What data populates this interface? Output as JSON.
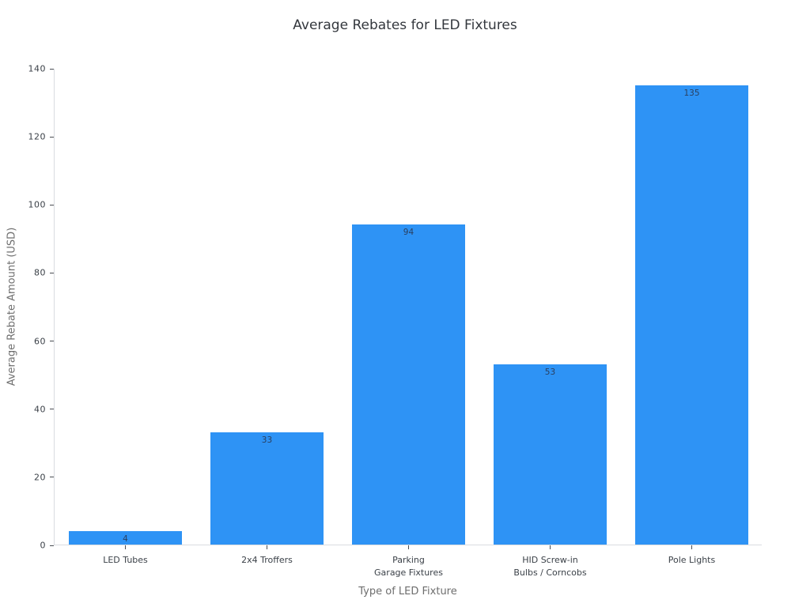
{
  "chart_data": {
    "type": "bar",
    "title": "Average Rebates for LED Fixtures",
    "xlabel": "Type of LED Fixture",
    "ylabel": "Average Rebate Amount (USD)",
    "categories": [
      "LED Tubes",
      "2x4 Troffers",
      "Parking\nGarage Fixtures",
      "HID Screw-in\nBulbs / Corncobs",
      "Pole Lights"
    ],
    "values": [
      4,
      33,
      94,
      53,
      135
    ],
    "value_labels": [
      "4",
      "33",
      "94",
      "53",
      "135"
    ],
    "ylim": [
      0,
      140
    ],
    "yticks": [
      0,
      20,
      40,
      60,
      80,
      100,
      120,
      140
    ],
    "grid": false,
    "legend": "none",
    "bar_label_position": "inside-top",
    "bar_width_fraction": 0.8
  },
  "colors": {
    "bar": "#2e93f5",
    "bar_value_label": "#2a3f5f",
    "tick_label": "#3b4148",
    "axis_title": "#6e6e6e",
    "title": "#33373d",
    "axis_line": "#d9dce0",
    "tick_mark": "#4a4e54",
    "background": "#ffffff"
  }
}
